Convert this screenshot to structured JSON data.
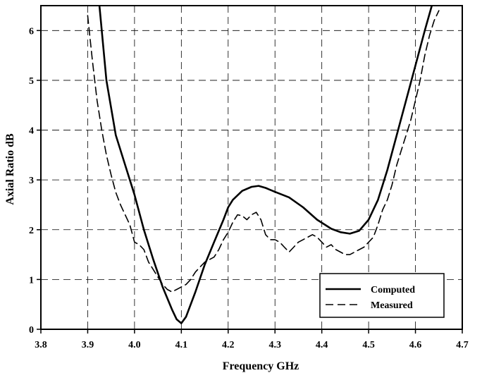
{
  "chart_data": {
    "type": "line",
    "title": "",
    "xlabel": "Frequency GHz",
    "ylabel": "Axial Ratio dB",
    "xlim": [
      3.8,
      4.7
    ],
    "ylim": [
      0,
      6.5
    ],
    "xticks": [
      "3.8",
      "3.9",
      "4.0",
      "4.1",
      "4.2",
      "4.3",
      "4.4",
      "4.5",
      "4.6",
      "4.7"
    ],
    "yticks": [
      "0",
      "1",
      "2",
      "3",
      "4",
      "5",
      "6"
    ],
    "grid": true,
    "legend_position": "bottom-right",
    "series": [
      {
        "name": "Computed",
        "style": "solid",
        "x": [
          3.925,
          3.94,
          3.96,
          3.98,
          4.0,
          4.02,
          4.04,
          4.06,
          4.08,
          4.09,
          4.1,
          4.11,
          4.13,
          4.15,
          4.17,
          4.19,
          4.2,
          4.21,
          4.23,
          4.25,
          4.265,
          4.28,
          4.3,
          4.33,
          4.36,
          4.39,
          4.42,
          4.44,
          4.46,
          4.48,
          4.5,
          4.52,
          4.54,
          4.56,
          4.58,
          4.6,
          4.62,
          4.635
        ],
        "y": [
          6.5,
          5.0,
          3.9,
          3.3,
          2.7,
          2.0,
          1.4,
          0.85,
          0.4,
          0.2,
          0.12,
          0.25,
          0.75,
          1.3,
          1.75,
          2.2,
          2.45,
          2.6,
          2.78,
          2.86,
          2.88,
          2.84,
          2.76,
          2.65,
          2.45,
          2.2,
          2.02,
          1.95,
          1.92,
          1.98,
          2.2,
          2.6,
          3.2,
          3.9,
          4.6,
          5.3,
          6.0,
          6.5
        ]
      },
      {
        "name": "Measured",
        "style": "dashed",
        "x": [
          3.9,
          3.91,
          3.92,
          3.93,
          3.94,
          3.95,
          3.96,
          3.97,
          3.98,
          3.99,
          4.0,
          4.01,
          4.02,
          4.03,
          4.04,
          4.05,
          4.06,
          4.07,
          4.08,
          4.09,
          4.1,
          4.11,
          4.12,
          4.13,
          4.14,
          4.15,
          4.16,
          4.17,
          4.18,
          4.19,
          4.2,
          4.21,
          4.22,
          4.23,
          4.24,
          4.25,
          4.26,
          4.27,
          4.28,
          4.29,
          4.3,
          4.31,
          4.32,
          4.33,
          4.34,
          4.35,
          4.36,
          4.37,
          4.38,
          4.39,
          4.4,
          4.41,
          4.42,
          4.43,
          4.44,
          4.45,
          4.46,
          4.47,
          4.48,
          4.49,
          4.5,
          4.51,
          4.52,
          4.53,
          4.54,
          4.55,
          4.56,
          4.57,
          4.58,
          4.59,
          4.6,
          4.61,
          4.62,
          4.63,
          4.64,
          4.65
        ],
        "y": [
          6.3,
          5.4,
          4.6,
          4.0,
          3.5,
          3.1,
          2.75,
          2.5,
          2.3,
          2.1,
          1.75,
          1.7,
          1.6,
          1.35,
          1.2,
          1.05,
          0.9,
          0.8,
          0.75,
          0.8,
          0.85,
          0.9,
          1.0,
          1.15,
          1.25,
          1.35,
          1.4,
          1.45,
          1.6,
          1.8,
          1.95,
          2.15,
          2.3,
          2.28,
          2.2,
          2.3,
          2.35,
          2.2,
          1.9,
          1.8,
          1.8,
          1.75,
          1.65,
          1.55,
          1.65,
          1.75,
          1.8,
          1.85,
          1.9,
          1.85,
          1.75,
          1.65,
          1.7,
          1.6,
          1.55,
          1.5,
          1.5,
          1.55,
          1.6,
          1.65,
          1.75,
          1.85,
          2.1,
          2.4,
          2.6,
          2.9,
          3.3,
          3.6,
          3.9,
          4.2,
          4.6,
          5.0,
          5.5,
          5.9,
          6.2,
          6.4
        ]
      }
    ]
  }
}
